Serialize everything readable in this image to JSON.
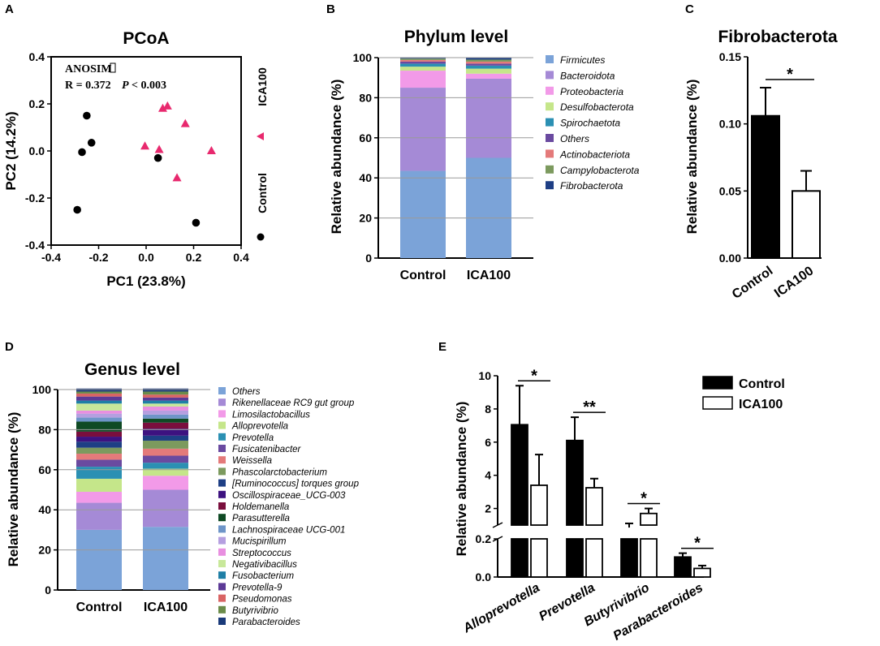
{
  "panels": [
    {
      "id": "A",
      "letter": "A",
      "title": "PCoA",
      "chart_data": {
        "type": "scatter",
        "title": "PCoA",
        "xlabel": "PC1 (23.8%)",
        "ylabel": "PC2 (14.2%)",
        "xlim": [
          -0.4,
          0.4
        ],
        "ylim": [
          -0.4,
          0.4
        ],
        "xticks": [
          "-0.4",
          "-0.2",
          "0.0",
          "0.2",
          "0.4"
        ],
        "yticks": [
          "-0.4",
          "-0.2",
          "0.0",
          "0.2",
          "0.4"
        ],
        "annotation_line1": "ANOSIM",
        "annotation_r": "R = 0.372",
        "annotation_p_label": "P",
        "annotation_p_value": "< 0.003",
        "series": [
          {
            "name": "ICA100",
            "marker": "triangle",
            "color": "#e8296e",
            "points": [
              [
                -0.005,
                0.02
              ],
              [
                0.07,
                0.18
              ],
              [
                0.09,
                0.19
              ],
              [
                0.165,
                0.115
              ],
              [
                0.275,
                0.0
              ],
              [
                0.055,
                0.005
              ],
              [
                0.13,
                -0.115
              ]
            ]
          },
          {
            "name": "Control",
            "marker": "circle",
            "color": "#000000",
            "points": [
              [
                -0.25,
                0.15
              ],
              [
                -0.27,
                -0.005
              ],
              [
                -0.23,
                0.035
              ],
              [
                0.05,
                -0.03
              ],
              [
                -0.29,
                -0.25
              ],
              [
                0.21,
                -0.305
              ]
            ]
          }
        ]
      }
    },
    {
      "id": "B",
      "letter": "B",
      "title": "Phylum level",
      "chart_data": {
        "type": "bar",
        "stacked": true,
        "title": "Phylum level",
        "ylabel": "Relative abundance (%)",
        "ylim": [
          0,
          100
        ],
        "yticks": [
          "0",
          "20",
          "40",
          "60",
          "80",
          "100"
        ],
        "categories": [
          "Control",
          "ICA100"
        ],
        "series": [
          {
            "name": "Firmicutes",
            "color": "#7ba3d8",
            "values": [
              43.5,
              50
            ]
          },
          {
            "name": "Bacteroidota",
            "color": "#a58ad6",
            "values": [
              41.5,
              39.5
            ]
          },
          {
            "name": "Proteobacteria",
            "color": "#f29ae8",
            "values": [
              8.5,
              2.5
            ]
          },
          {
            "name": "Desulfobacterota",
            "color": "#c5e68a",
            "values": [
              2.0,
              2.5
            ]
          },
          {
            "name": "Spirochaetota",
            "color": "#2b90b3",
            "values": [
              1.5,
              1.5
            ]
          },
          {
            "name": "Others",
            "color": "#6a4aa0",
            "values": [
              1.0,
              1.0
            ]
          },
          {
            "name": "Actinobacteriota",
            "color": "#e47a7a",
            "values": [
              0.8,
              1.0
            ]
          },
          {
            "name": "Campylobacterota",
            "color": "#7c9a5e",
            "values": [
              0.7,
              1.0
            ]
          },
          {
            "name": "Fibrobacterota",
            "color": "#1e3f85",
            "values": [
              0.5,
              1.0
            ]
          }
        ]
      }
    },
    {
      "id": "C",
      "letter": "C",
      "title": "Fibrobacterota",
      "chart_data": {
        "type": "bar",
        "title": "Fibrobacterota",
        "ylabel": "Relative abundance (%)",
        "ylim": [
          0,
          0.15
        ],
        "yticks": [
          "0.00",
          "0.05",
          "0.10",
          "0.15"
        ],
        "categories": [
          "Control",
          "ICA100"
        ],
        "values": [
          0.106,
          0.05
        ],
        "errors": [
          0.021,
          0.015
        ],
        "fills": [
          "#000000",
          "#ffffff"
        ],
        "significance": "*"
      }
    },
    {
      "id": "D",
      "letter": "D",
      "title": "Genus level",
      "chart_data": {
        "type": "bar",
        "stacked": true,
        "title": "Genus level",
        "ylabel": "Relative abundance (%)",
        "ylim": [
          0,
          100
        ],
        "yticks": [
          "0",
          "20",
          "40",
          "60",
          "80",
          "100"
        ],
        "categories": [
          "Control",
          "ICA100"
        ],
        "series": [
          {
            "name": "Others",
            "color": "#7ba3d8",
            "values": [
              30,
              31.5
            ]
          },
          {
            "name": "Rikenellaceae RC9 gut group",
            "color": "#a58ad6",
            "values": [
              13.5,
              18.5
            ]
          },
          {
            "name": "Limosilactobacillus",
            "color": "#f29ae8",
            "values": [
              5.5,
              7.0
            ]
          },
          {
            "name": "Alloprevotella",
            "color": "#c5e68a",
            "values": [
              6.5,
              3.5
            ]
          },
          {
            "name": "Prevotella",
            "color": "#2b90b3",
            "values": [
              6.0,
              3.0
            ]
          },
          {
            "name": "Fusicatenibacter",
            "color": "#6a4aa0",
            "values": [
              3.5,
              3.5
            ]
          },
          {
            "name": "Weissella",
            "color": "#e47a7a",
            "values": [
              3.0,
              3.5
            ]
          },
          {
            "name": "Phascolarctobacterium",
            "color": "#7c9a5e",
            "values": [
              3.0,
              4.0
            ]
          },
          {
            "name": "[Ruminococcus] torques group",
            "color": "#1e3f85",
            "values": [
              3.0,
              2.5
            ]
          },
          {
            "name": "Oscillospiraceae_UCG-003",
            "color": "#3d1280",
            "values": [
              2.5,
              3.5
            ]
          },
          {
            "name": "Holdemanella",
            "color": "#7a0f3d",
            "values": [
              2.5,
              3.0
            ]
          },
          {
            "name": "Parasutterella",
            "color": "#0f4a24",
            "values": [
              5.0,
              2.0
            ]
          },
          {
            "name": "Lachnospiraceae UCG-001",
            "color": "#6e95c8",
            "values": [
              2.0,
              2.0
            ]
          },
          {
            "name": "Mucispirillum",
            "color": "#b59fe0",
            "values": [
              2.0,
              2.0
            ]
          },
          {
            "name": "Streptococcus",
            "color": "#e88fe0",
            "values": [
              1.5,
              2.0
            ]
          },
          {
            "name": "Negativibacillus",
            "color": "#c8e89a",
            "values": [
              3.5,
              1.5
            ]
          },
          {
            "name": "Fusobacterium",
            "color": "#1f7fa6",
            "values": [
              1.5,
              1.5
            ]
          },
          {
            "name": "Prevotella-9",
            "color": "#5c3a96",
            "values": [
              2.0,
              1.5
            ]
          },
          {
            "name": "Pseudomonas",
            "color": "#d96464",
            "values": [
              1.5,
              1.5
            ]
          },
          {
            "name": "Butyrivibrio",
            "color": "#6b8c4a",
            "values": [
              1.0,
              1.5
            ]
          },
          {
            "name": "Parabacteroides",
            "color": "#1a3a7a",
            "values": [
              1.5,
              1.5
            ]
          }
        ]
      }
    },
    {
      "id": "E",
      "letter": "E",
      "title": "",
      "chart_data": {
        "type": "bar",
        "title": "",
        "ylabel": "Relative abundance (%)",
        "axis_break": [
          0.2,
          1.0
        ],
        "upper_yticks": [
          "2",
          "4",
          "6",
          "8",
          "10"
        ],
        "lower_yticks": [
          "0.0",
          "0.2"
        ],
        "categories": [
          "Alloprevotella",
          "Prevotella",
          "Butyrivibrio",
          "Parabacteroides"
        ],
        "series": [
          {
            "name": "Control",
            "fill": "#000000",
            "values": [
              7.05,
              6.1,
              0.85,
              0.105
            ],
            "errors": [
              2.35,
              1.4,
              0.25,
              0.02
            ]
          },
          {
            "name": "ICA100",
            "fill": "#ffffff",
            "values": [
              3.4,
              3.25,
              1.7,
              0.045
            ],
            "errors": [
              1.85,
              0.55,
              0.3,
              0.015
            ]
          }
        ],
        "significance": [
          "*",
          "**",
          "*",
          "*"
        ]
      }
    }
  ]
}
